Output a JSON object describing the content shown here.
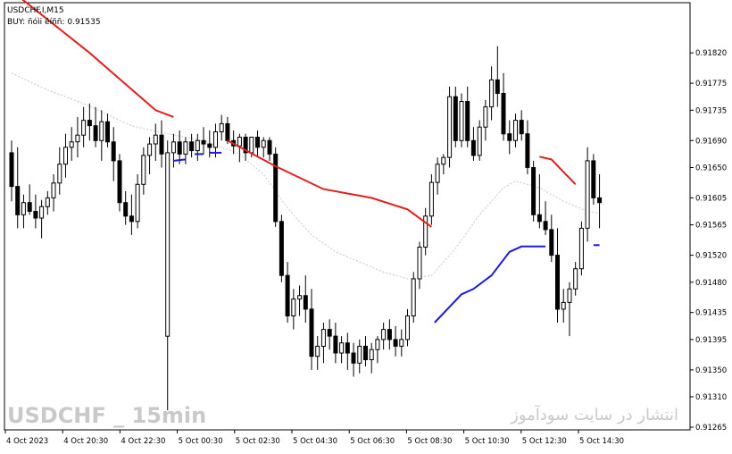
{
  "window": {
    "symbol_label": "USDCHF.I,M15",
    "indicator_label": "BUY: ñóìi ëíññ: 0.91535"
  },
  "watermark": {
    "left": "USDCHF _ 15min",
    "right": "انتشار در سایت سودآموز"
  },
  "colors": {
    "background": "#ffffff",
    "frame": "#000000",
    "bull_candle": "#ffffff",
    "bear_candle": "#000000",
    "resistance_line": "#e0201c",
    "support_line": "#1a1adc",
    "moving_average": "#c8c8c8",
    "watermark": "#c9c9c9"
  },
  "chart_data": {
    "type": "candlestick",
    "title": "USDCHF.I,M15",
    "ylim": [
      0.91265,
      0.9186
    ],
    "y_ticks": [
      "0.91820",
      "0.91775",
      "0.91735",
      "0.91690",
      "0.91650",
      "0.91605",
      "0.91565",
      "0.91520",
      "0.91480",
      "0.91435",
      "0.91395",
      "0.91350",
      "0.91310",
      "0.91265"
    ],
    "x_ticks": [
      "4 Oct 2023",
      "4 Oct 20:30",
      "4 Oct 22:30",
      "5 Oct 00:30",
      "5 Oct 02:30",
      "5 Oct 04:30",
      "5 Oct 06:30",
      "5 Oct 08:30",
      "5 Oct 10:30",
      "5 Oct 12:30",
      "5 Oct 14:30"
    ],
    "candles": [
      [
        0.91672,
        0.9169,
        0.916,
        0.91622
      ],
      [
        0.91622,
        0.9168,
        0.9156,
        0.9158
      ],
      [
        0.9158,
        0.9161,
        0.9156,
        0.91598
      ],
      [
        0.91598,
        0.91625,
        0.9158,
        0.91585
      ],
      [
        0.91585,
        0.9161,
        0.9156,
        0.91575
      ],
      [
        0.91575,
        0.91602,
        0.91545,
        0.91592
      ],
      [
        0.91592,
        0.91615,
        0.9158,
        0.91605
      ],
      [
        0.91605,
        0.9164,
        0.91585,
        0.91627
      ],
      [
        0.91627,
        0.9168,
        0.9161,
        0.91655
      ],
      [
        0.91655,
        0.917,
        0.91635,
        0.9168
      ],
      [
        0.9168,
        0.9171,
        0.9166,
        0.91688
      ],
      [
        0.91688,
        0.91725,
        0.91665,
        0.91698
      ],
      [
        0.91698,
        0.9174,
        0.9168,
        0.9172
      ],
      [
        0.9172,
        0.91745,
        0.9169,
        0.91712
      ],
      [
        0.91712,
        0.9174,
        0.9168,
        0.9169
      ],
      [
        0.9169,
        0.91735,
        0.9166,
        0.91718
      ],
      [
        0.91718,
        0.9173,
        0.9168,
        0.91688
      ],
      [
        0.91688,
        0.9171,
        0.9163,
        0.9166
      ],
      [
        0.9166,
        0.9167,
        0.91585,
        0.91598
      ],
      [
        0.91598,
        0.91615,
        0.91565,
        0.91578
      ],
      [
        0.91578,
        0.9161,
        0.9155,
        0.9157
      ],
      [
        0.9157,
        0.9164,
        0.9156,
        0.91625
      ],
      [
        0.91625,
        0.9168,
        0.9161,
        0.91668
      ],
      [
        0.91668,
        0.91695,
        0.9164,
        0.91685
      ],
      [
        0.91685,
        0.91715,
        0.9166,
        0.91698
      ],
      [
        0.91698,
        0.9172,
        0.9165,
        0.9167
      ],
      [
        0.914,
        0.9169,
        0.9129,
        0.91672
      ],
      [
        0.91672,
        0.917,
        0.9165,
        0.91688
      ],
      [
        0.91688,
        0.91705,
        0.91655,
        0.9167
      ],
      [
        0.9167,
        0.91695,
        0.91655,
        0.91688
      ],
      [
        0.91688,
        0.917,
        0.91665,
        0.91675
      ],
      [
        0.91675,
        0.917,
        0.9166,
        0.9169
      ],
      [
        0.9169,
        0.9171,
        0.9167,
        0.91685
      ],
      [
        0.91685,
        0.91705,
        0.91665,
        0.9168
      ],
      [
        0.9168,
        0.91715,
        0.91665,
        0.91703
      ],
      [
        0.91703,
        0.91728,
        0.9169,
        0.91715
      ],
      [
        0.91715,
        0.91725,
        0.91685,
        0.9169
      ],
      [
        0.9169,
        0.91705,
        0.9167,
        0.91682
      ],
      [
        0.91682,
        0.917,
        0.91658,
        0.91695
      ],
      [
        0.91695,
        0.917,
        0.9166,
        0.91672
      ],
      [
        0.91672,
        0.91695,
        0.91665,
        0.91695
      ],
      [
        0.91695,
        0.91705,
        0.91665,
        0.9168
      ],
      [
        0.9168,
        0.91695,
        0.91665,
        0.9169
      ],
      [
        0.9169,
        0.91695,
        0.9166,
        0.9167
      ],
      [
        0.9167,
        0.9168,
        0.91562,
        0.9157
      ],
      [
        0.9157,
        0.9158,
        0.9148,
        0.9149
      ],
      [
        0.9149,
        0.9151,
        0.9142,
        0.9143
      ],
      [
        0.9143,
        0.9147,
        0.9141,
        0.91455
      ],
      [
        0.91455,
        0.91475,
        0.9143,
        0.9146
      ],
      [
        0.9146,
        0.9149,
        0.9142,
        0.9144
      ],
      [
        0.9144,
        0.9147,
        0.9135,
        0.9137
      ],
      [
        0.9137,
        0.914,
        0.9135,
        0.91385
      ],
      [
        0.91385,
        0.9142,
        0.9136,
        0.9141
      ],
      [
        0.9141,
        0.91425,
        0.9138,
        0.914
      ],
      [
        0.914,
        0.9142,
        0.9136,
        0.91375
      ],
      [
        0.91375,
        0.914,
        0.9136,
        0.9139
      ],
      [
        0.9139,
        0.91405,
        0.9135,
        0.91375
      ],
      [
        0.91375,
        0.9139,
        0.9134,
        0.9136
      ],
      [
        0.9136,
        0.91395,
        0.91345,
        0.91385
      ],
      [
        0.91385,
        0.914,
        0.91355,
        0.91365
      ],
      [
        0.91365,
        0.9139,
        0.91345,
        0.9138
      ],
      [
        0.9138,
        0.914,
        0.9136,
        0.91395
      ],
      [
        0.91395,
        0.9142,
        0.9138,
        0.9141
      ],
      [
        0.9141,
        0.91425,
        0.9138,
        0.91395
      ],
      [
        0.91395,
        0.91415,
        0.9137,
        0.91385
      ],
      [
        0.91385,
        0.9141,
        0.9137,
        0.91395
      ],
      [
        0.91395,
        0.9144,
        0.91385,
        0.9143
      ],
      [
        0.9143,
        0.91495,
        0.9142,
        0.91485
      ],
      [
        0.91485,
        0.9154,
        0.9147,
        0.91532
      ],
      [
        0.91532,
        0.9159,
        0.9152,
        0.91578
      ],
      [
        0.91578,
        0.9164,
        0.91565,
        0.91628
      ],
      [
        0.91628,
        0.91665,
        0.9161,
        0.91655
      ],
      [
        0.91655,
        0.9167,
        0.9164,
        0.91665
      ],
      [
        0.91665,
        0.9177,
        0.9165,
        0.91755
      ],
      [
        0.91755,
        0.9177,
        0.9168,
        0.9169
      ],
      [
        0.9169,
        0.9176,
        0.9168,
        0.91748
      ],
      [
        0.91748,
        0.9177,
        0.9168,
        0.9169
      ],
      [
        0.9169,
        0.9171,
        0.9166,
        0.91668
      ],
      [
        0.91668,
        0.9172,
        0.9166,
        0.9171
      ],
      [
        0.9171,
        0.9175,
        0.9169,
        0.9174
      ],
      [
        0.9174,
        0.918,
        0.9172,
        0.9178
      ],
      [
        0.9178,
        0.9183,
        0.9174,
        0.9176
      ],
      [
        0.9176,
        0.9179,
        0.9169,
        0.917
      ],
      [
        0.917,
        0.9172,
        0.9167,
        0.9169
      ],
      [
        0.9169,
        0.9173,
        0.9168,
        0.9172
      ],
      [
        0.9172,
        0.91735,
        0.9169,
        0.917
      ],
      [
        0.917,
        0.9172,
        0.9164,
        0.9165
      ],
      [
        0.9165,
        0.9166,
        0.9157,
        0.9158
      ],
      [
        0.9158,
        0.9164,
        0.9156,
        0.9157
      ],
      [
        0.9157,
        0.916,
        0.9155,
        0.91558
      ],
      [
        0.91558,
        0.9158,
        0.9151,
        0.9152
      ],
      [
        0.9152,
        0.9156,
        0.9142,
        0.9144
      ],
      [
        0.9144,
        0.9147,
        0.9142,
        0.9145
      ],
      [
        0.9145,
        0.9148,
        0.914,
        0.9147
      ],
      [
        0.9147,
        0.9151,
        0.9146,
        0.915
      ],
      [
        0.915,
        0.9157,
        0.9149,
        0.9156
      ],
      [
        0.9156,
        0.9168,
        0.9154,
        0.9166
      ],
      [
        0.9166,
        0.9167,
        0.91595,
        0.91605
      ],
      [
        0.91605,
        0.9164,
        0.9156,
        0.91598
      ]
    ],
    "resistance_segments": [
      [
        [
          0.0,
          0.91912
        ],
        [
          13.0,
          0.9182
        ],
        [
          24.0,
          0.91735
        ],
        [
          27.0,
          0.91725
        ]
      ],
      [
        [
          36.0,
          0.9169
        ],
        [
          44.0,
          0.91652
        ],
        [
          52.0,
          0.91618
        ],
        [
          60.0,
          0.91605
        ],
        [
          66.0,
          0.91588
        ],
        [
          70.0,
          0.91562
        ]
      ],
      [
        [
          88.0,
          0.91666
        ],
        [
          90.0,
          0.91662
        ],
        [
          94.0,
          0.91625
        ]
      ]
    ],
    "support_segments": [
      [
        [
          27.0,
          0.9166
        ],
        [
          29.0,
          0.91662
        ]
      ],
      [
        [
          30.5,
          0.9167
        ],
        [
          32.0,
          0.9167
        ]
      ],
      [
        [
          33.0,
          0.91672
        ],
        [
          35.0,
          0.91672
        ]
      ],
      [
        [
          70.5,
          0.9142
        ],
        [
          75.0,
          0.91462
        ],
        [
          77.0,
          0.9147
        ],
        [
          80.0,
          0.9149
        ],
        [
          83.0,
          0.91525
        ],
        [
          85.0,
          0.91533
        ],
        [
          89.0,
          0.91533
        ]
      ],
      [
        [
          97.0,
          0.91535
        ],
        [
          98.0,
          0.91535
        ]
      ]
    ],
    "moving_average": [
      [
        0,
        0.9179
      ],
      [
        6,
        0.91765
      ],
      [
        12,
        0.91745
      ],
      [
        20,
        0.91712
      ],
      [
        26,
        0.917
      ],
      [
        32,
        0.9169
      ],
      [
        38,
        0.9167
      ],
      [
        42,
        0.9164
      ],
      [
        46,
        0.9159
      ],
      [
        50,
        0.9155
      ],
      [
        54,
        0.91525
      ],
      [
        58,
        0.9151
      ],
      [
        62,
        0.91495
      ],
      [
        66,
        0.91485
      ],
      [
        70,
        0.9149
      ],
      [
        74,
        0.9153
      ],
      [
        78,
        0.9158
      ],
      [
        82,
        0.9162
      ],
      [
        84,
        0.9163
      ],
      [
        88,
        0.9162
      ],
      [
        92,
        0.916
      ],
      [
        96,
        0.91585
      ],
      [
        98,
        0.91582
      ]
    ]
  }
}
